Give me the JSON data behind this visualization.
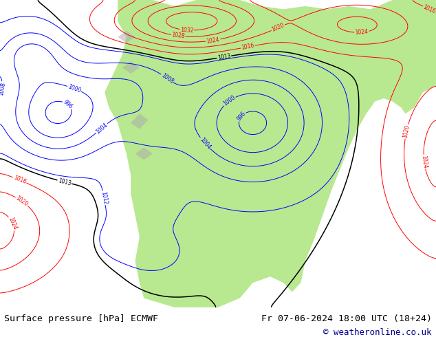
{
  "title_left": "Surface pressure [hPa] ECMWF",
  "title_right": "Fr 07-06-2024 18:00 UTC (18+24)",
  "copyright": "© weatheronline.co.uk",
  "bg_color": "#ffffff",
  "ocean_color": "#e8e8e8",
  "land_color": "#b8e890",
  "text_color": "#000000",
  "bottom_bar_color": "#d8d8d8",
  "title_fontsize": 9.5,
  "copyright_color": "#00008b",
  "bottom_bar_height": 0.088
}
